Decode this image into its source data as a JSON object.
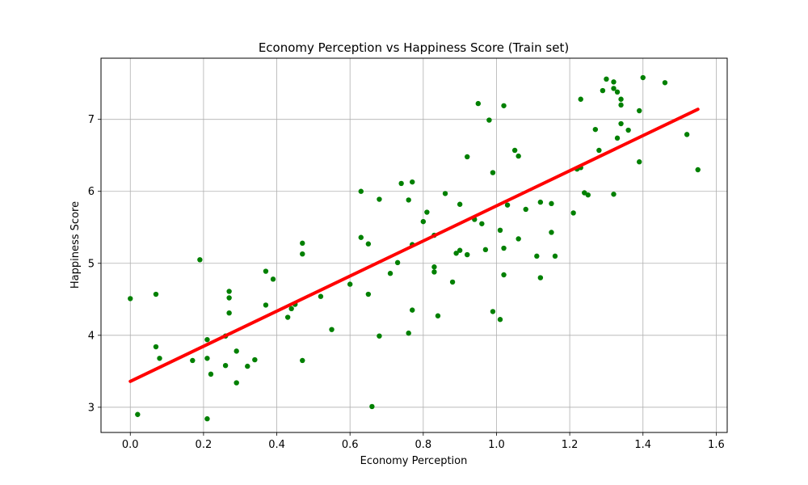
{
  "chart_data": {
    "type": "scatter",
    "title": "Economy Perception vs Happiness Score (Train set)",
    "xlabel": "Economy Perception",
    "ylabel": "Happiness Score",
    "xlim": [
      -0.08,
      1.63
    ],
    "ylim": [
      2.65,
      7.85
    ],
    "xticks": [
      "0.0",
      "0.2",
      "0.4",
      "0.6",
      "0.8",
      "1.0",
      "1.2",
      "1.4",
      "1.6"
    ],
    "xtick_values": [
      0.0,
      0.2,
      0.4,
      0.6,
      0.8,
      1.0,
      1.2,
      1.4,
      1.6
    ],
    "yticks": [
      "3",
      "4",
      "5",
      "6",
      "7"
    ],
    "ytick_values": [
      3,
      4,
      5,
      6,
      7
    ],
    "grid": true,
    "point_color": "#008000",
    "line_color": "#ff0000",
    "series": [
      {
        "type": "scatter",
        "points": [
          [
            0.0,
            4.51
          ],
          [
            0.02,
            2.9
          ],
          [
            0.07,
            4.57
          ],
          [
            0.07,
            3.84
          ],
          [
            0.08,
            3.68
          ],
          [
            0.17,
            3.65
          ],
          [
            0.19,
            5.05
          ],
          [
            0.21,
            3.94
          ],
          [
            0.21,
            3.68
          ],
          [
            0.21,
            2.84
          ],
          [
            0.22,
            3.46
          ],
          [
            0.26,
            3.58
          ],
          [
            0.26,
            3.99
          ],
          [
            0.27,
            4.52
          ],
          [
            0.27,
            4.61
          ],
          [
            0.27,
            4.31
          ],
          [
            0.29,
            3.78
          ],
          [
            0.29,
            3.34
          ],
          [
            0.32,
            3.57
          ],
          [
            0.34,
            3.66
          ],
          [
            0.37,
            4.42
          ],
          [
            0.37,
            4.89
          ],
          [
            0.39,
            4.78
          ],
          [
            0.43,
            4.25
          ],
          [
            0.44,
            4.37
          ],
          [
            0.45,
            4.43
          ],
          [
            0.47,
            5.13
          ],
          [
            0.47,
            5.28
          ],
          [
            0.47,
            3.65
          ],
          [
            0.52,
            4.54
          ],
          [
            0.55,
            4.08
          ],
          [
            0.6,
            4.71
          ],
          [
            0.63,
            6.0
          ],
          [
            0.63,
            5.36
          ],
          [
            0.65,
            4.57
          ],
          [
            0.65,
            5.27
          ],
          [
            0.66,
            3.01
          ],
          [
            0.68,
            5.89
          ],
          [
            0.68,
            3.99
          ],
          [
            0.71,
            4.86
          ],
          [
            0.73,
            5.01
          ],
          [
            0.74,
            6.11
          ],
          [
            0.76,
            4.03
          ],
          [
            0.76,
            5.88
          ],
          [
            0.77,
            6.13
          ],
          [
            0.77,
            4.35
          ],
          [
            0.77,
            5.26
          ],
          [
            0.8,
            5.58
          ],
          [
            0.81,
            5.71
          ],
          [
            0.83,
            5.39
          ],
          [
            0.83,
            4.88
          ],
          [
            0.83,
            4.95
          ],
          [
            0.84,
            4.27
          ],
          [
            0.86,
            5.97
          ],
          [
            0.88,
            4.74
          ],
          [
            0.89,
            5.14
          ],
          [
            0.9,
            5.82
          ],
          [
            0.9,
            5.18
          ],
          [
            0.92,
            6.48
          ],
          [
            0.92,
            5.12
          ],
          [
            0.94,
            5.61
          ],
          [
            0.95,
            7.22
          ],
          [
            0.96,
            5.55
          ],
          [
            0.97,
            5.19
          ],
          [
            0.98,
            6.99
          ],
          [
            0.99,
            4.33
          ],
          [
            0.99,
            6.26
          ],
          [
            1.01,
            4.22
          ],
          [
            1.01,
            5.46
          ],
          [
            1.02,
            7.19
          ],
          [
            1.02,
            5.21
          ],
          [
            1.02,
            4.84
          ],
          [
            1.03,
            5.81
          ],
          [
            1.05,
            6.57
          ],
          [
            1.06,
            6.49
          ],
          [
            1.06,
            5.34
          ],
          [
            1.08,
            5.75
          ],
          [
            1.11,
            5.1
          ],
          [
            1.12,
            5.85
          ],
          [
            1.12,
            4.8
          ],
          [
            1.15,
            5.83
          ],
          [
            1.15,
            5.43
          ],
          [
            1.16,
            5.1
          ],
          [
            1.21,
            5.7
          ],
          [
            1.22,
            6.31
          ],
          [
            1.23,
            7.28
          ],
          [
            1.23,
            6.33
          ],
          [
            1.24,
            5.98
          ],
          [
            1.25,
            5.95
          ],
          [
            1.27,
            6.86
          ],
          [
            1.28,
            6.57
          ],
          [
            1.29,
            7.4
          ],
          [
            1.3,
            7.56
          ],
          [
            1.32,
            7.52
          ],
          [
            1.32,
            7.43
          ],
          [
            1.32,
            5.96
          ],
          [
            1.33,
            6.74
          ],
          [
            1.33,
            7.38
          ],
          [
            1.34,
            7.28
          ],
          [
            1.34,
            7.2
          ],
          [
            1.34,
            6.94
          ],
          [
            1.36,
            6.85
          ],
          [
            1.39,
            7.12
          ],
          [
            1.39,
            6.41
          ],
          [
            1.4,
            7.58
          ],
          [
            1.46,
            7.51
          ],
          [
            1.52,
            6.79
          ],
          [
            1.55,
            6.3
          ]
        ]
      },
      {
        "type": "line",
        "x": [
          0.0,
          1.55
        ],
        "y": [
          3.36,
          7.14
        ]
      }
    ]
  }
}
